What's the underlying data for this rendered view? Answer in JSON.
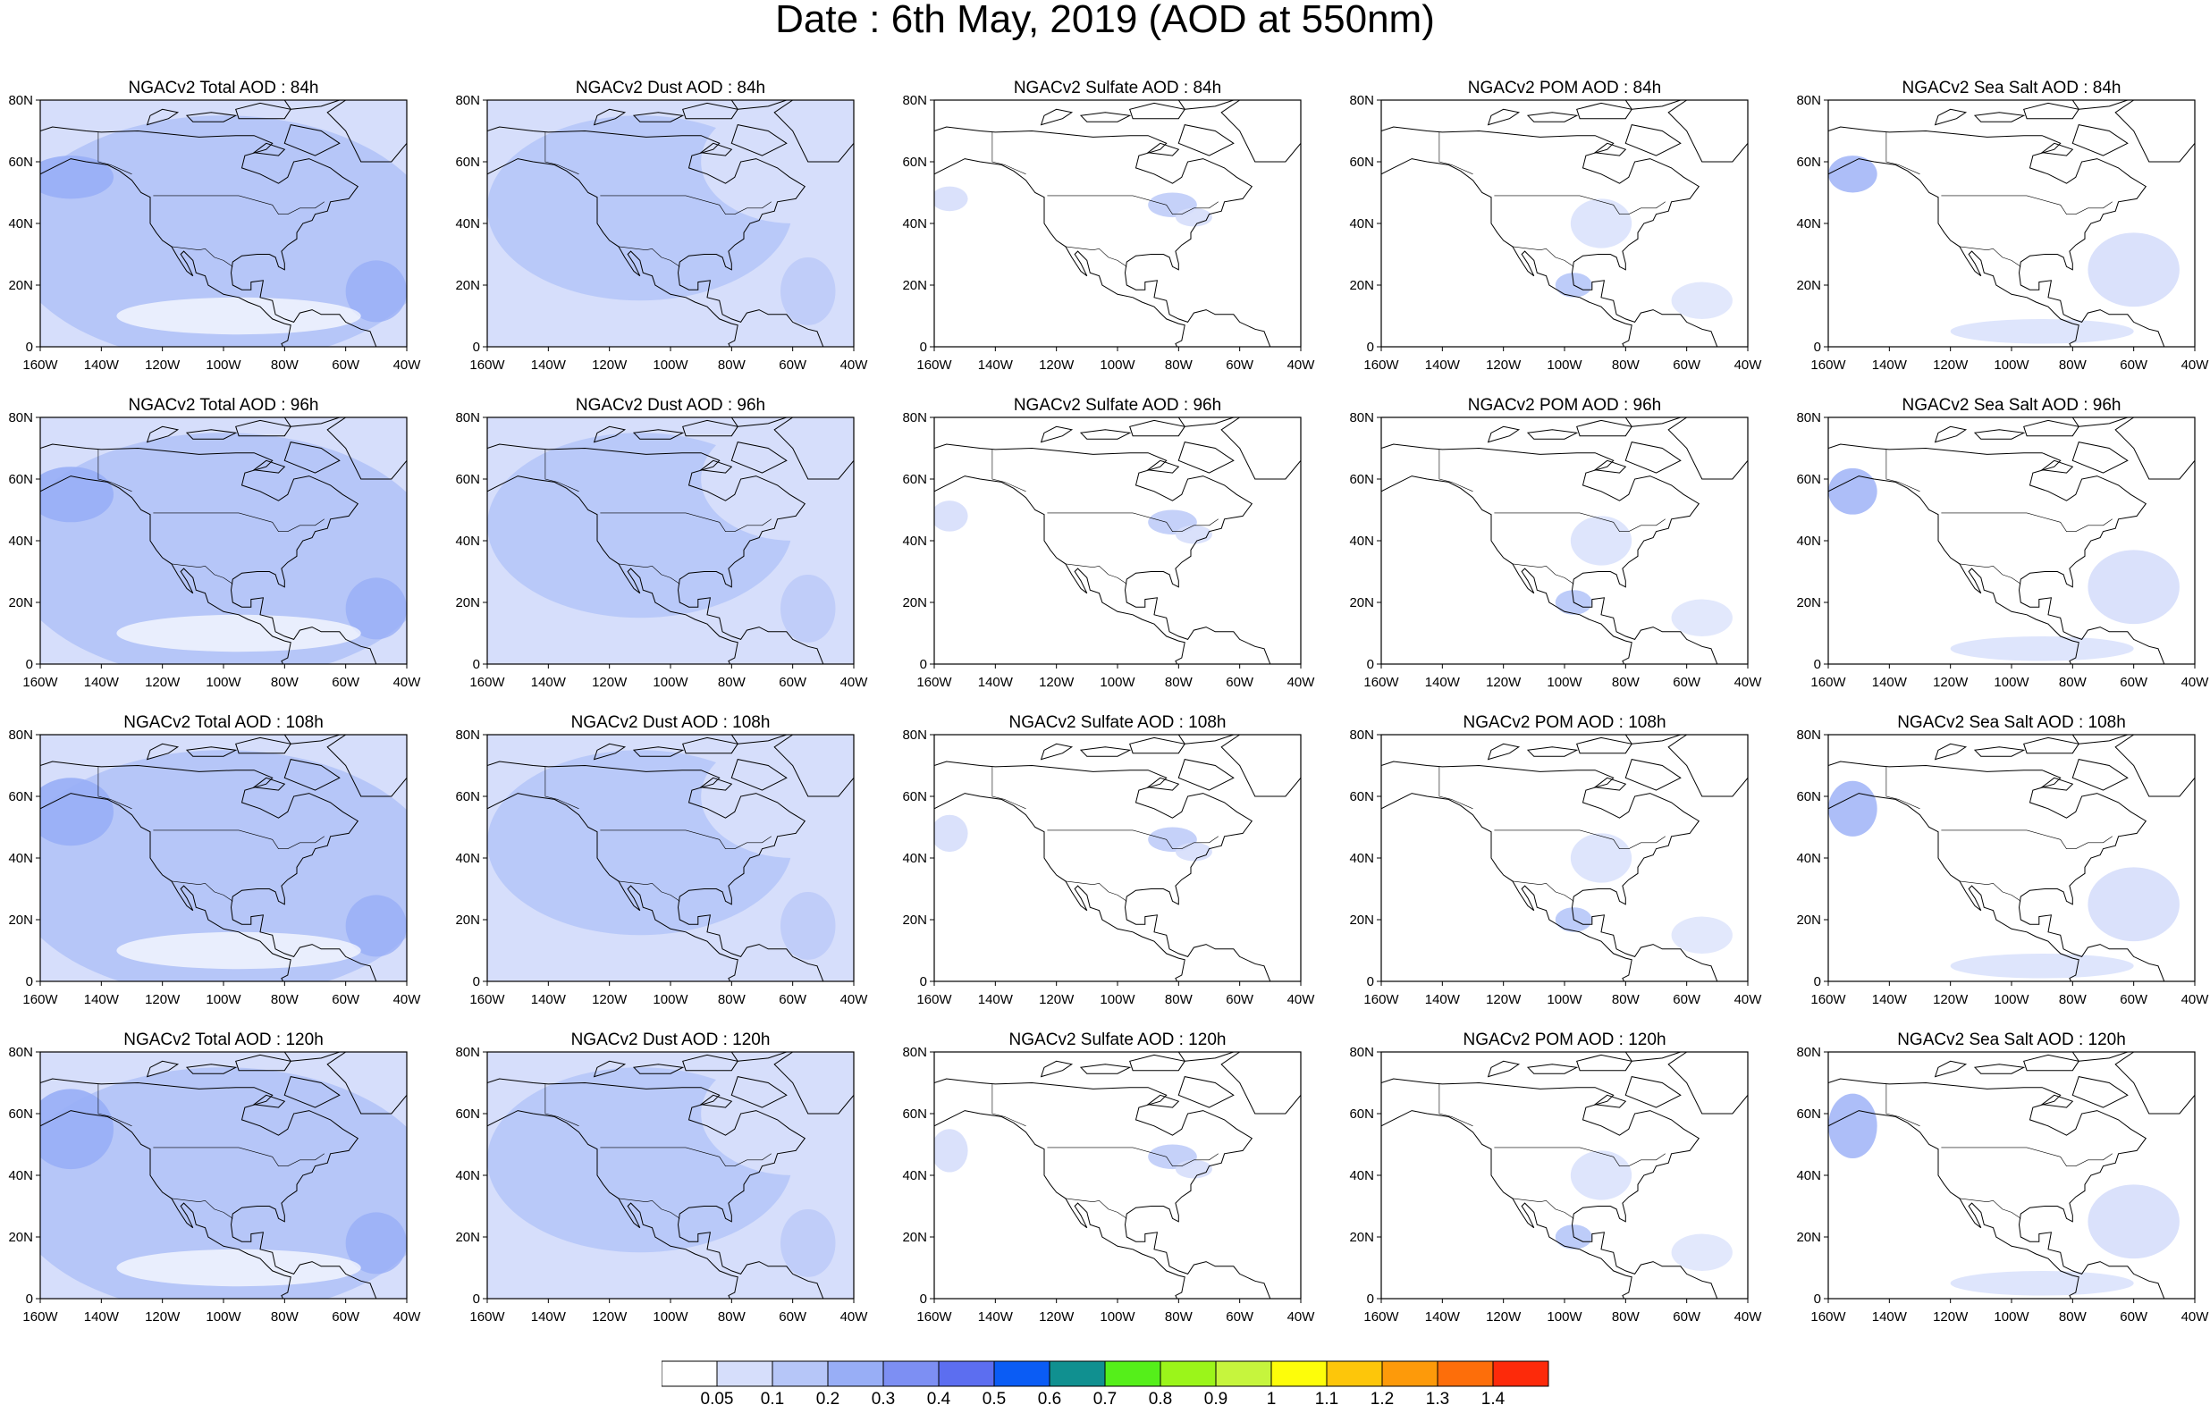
{
  "title": "Date : 6th May, 2019 (AOD at 550nm)",
  "forecast_hours": [
    "84h",
    "96h",
    "108h",
    "120h"
  ],
  "panel_titles": [
    [
      "NGACv2 Total AOD : 84h",
      "NGACv2 Dust AOD : 84h",
      "NGACv2 Sulfate AOD : 84h",
      "NGACv2 POM AOD : 84h",
      "NGACv2 Sea Salt AOD : 84h"
    ],
    [
      "NGACv2 Total AOD : 96h",
      "NGACv2 Dust AOD : 96h",
      "NGACv2 Sulfate AOD : 96h",
      "NGACv2 POM AOD : 96h",
      "NGACv2 Sea Salt AOD : 96h"
    ],
    [
      "NGACv2 Total AOD : 108h",
      "NGACv2 Dust AOD : 108h",
      "NGACv2 Sulfate AOD : 108h",
      "NGACv2 POM AOD : 108h",
      "NGACv2 Sea Salt AOD : 108h"
    ],
    [
      "NGACv2 Total AOD : 120h",
      "NGACv2 Dust AOD : 120h",
      "NGACv2 Sulfate AOD : 120h",
      "NGACv2 POM AOD : 120h",
      "NGACv2 Sea Salt  AOD : 120h"
    ]
  ],
  "lat_labels": [
    "80N",
    "60N",
    "40N",
    "20N",
    "0"
  ],
  "lon_labels": [
    "160W",
    "140W",
    "120W",
    "100W",
    "80W",
    "60W",
    "40W"
  ],
  "colorbar": {
    "labels": [
      "0.05",
      "0.1",
      "0.2",
      "0.3",
      "0.4",
      "0.5",
      "0.6",
      "0.7",
      "0.8",
      "0.9",
      "1",
      "1.1",
      "1.2",
      "1.3",
      "1.4"
    ],
    "colors": [
      "#ffffff",
      "#d6defb",
      "#b6c6f8",
      "#98aef6",
      "#7d8ff3",
      "#5c6ef0",
      "#0a5cf5",
      "#109090",
      "#55ef1a",
      "#9bf51a",
      "#c6f53d",
      "#fdfd0a",
      "#fdc60a",
      "#fd9a0a",
      "#fd6e0a",
      "#fd2a0a"
    ]
  },
  "colors": {
    "coast": "#000000",
    "low_aod": "#d6defb",
    "mid_aod": "#b6c6f8",
    "high_aod": "#98aef6"
  }
}
